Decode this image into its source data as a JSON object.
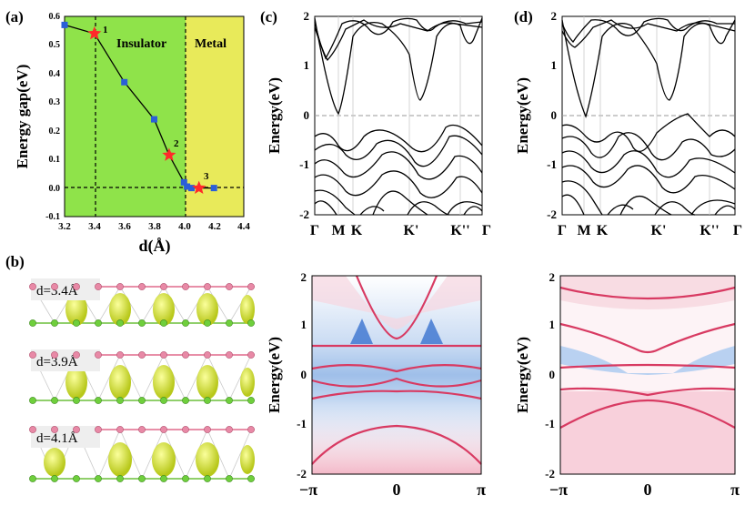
{
  "panel_labels": {
    "a": "(a)",
    "b": "(b)",
    "c": "(c)",
    "d": "(d)"
  },
  "panel_a": {
    "ylabel": "Energy gap(eV)",
    "xlabel": "d(Å)",
    "region_insulator": "Insulator",
    "region_metal": "Metal",
    "xticks": [
      "3.2",
      "3.4",
      "3.6",
      "3.8",
      "4.0",
      "4.2",
      "4.4"
    ],
    "yticks": [
      "-0.1",
      "0.0",
      "0.1",
      "0.2",
      "0.3",
      "0.4",
      "0.5",
      "0.6"
    ],
    "star_labels": [
      "1",
      "2",
      "3"
    ],
    "colors": {
      "insulator": "#8fe34a",
      "metal": "#e8ea5a",
      "square": "#2b5fd8",
      "star": "#ff2a2a"
    }
  },
  "panel_b": {
    "labels": [
      "d=3.4Å",
      "d=3.9Å",
      "d=4.1Å"
    ]
  },
  "panel_c": {
    "ylabel": "Energy(eV)",
    "kpoints": [
      "Γ",
      "M",
      "K",
      "K'",
      "K''",
      "Γ"
    ],
    "yticks": [
      "-2",
      "-1",
      "0",
      "1",
      "2"
    ]
  },
  "panel_d": {
    "ylabel": "Energy(eV)",
    "kpoints": [
      "Γ",
      "M",
      "K",
      "K'",
      "K''",
      "Γ"
    ],
    "yticks": [
      "-2",
      "-1",
      "0",
      "1",
      "2"
    ]
  },
  "surface_c": {
    "ylabel": "Energy(eV)",
    "xticks": [
      "−π",
      "0",
      "π"
    ],
    "yticks": [
      "-2",
      "-1",
      "0",
      "1",
      "2"
    ]
  },
  "surface_d": {
    "ylabel": "Energy(eV)",
    "xticks": [
      "−π",
      "0",
      "π"
    ],
    "yticks": [
      "-2",
      "-1",
      "0",
      "1",
      "2"
    ]
  },
  "chart_data": [
    {
      "type": "scatter",
      "title": "",
      "xlabel": "d(Å)",
      "ylabel": "Energy gap(eV)",
      "xlim": [
        3.2,
        4.4
      ],
      "ylim": [
        -0.1,
        0.6
      ],
      "series": [
        {
          "name": "gap",
          "x": [
            3.2,
            3.4,
            3.6,
            3.8,
            3.9,
            4.0,
            4.02,
            4.05,
            4.1,
            4.2
          ],
          "y": [
            0.57,
            0.54,
            0.37,
            0.24,
            0.115,
            0.02,
            0.005,
            0.0,
            0.0,
            0.0
          ]
        }
      ],
      "markers": {
        "star": [
          3.4,
          3.9,
          4.1
        ]
      },
      "boundaries": [
        3.4,
        4.0
      ]
    }
  ]
}
